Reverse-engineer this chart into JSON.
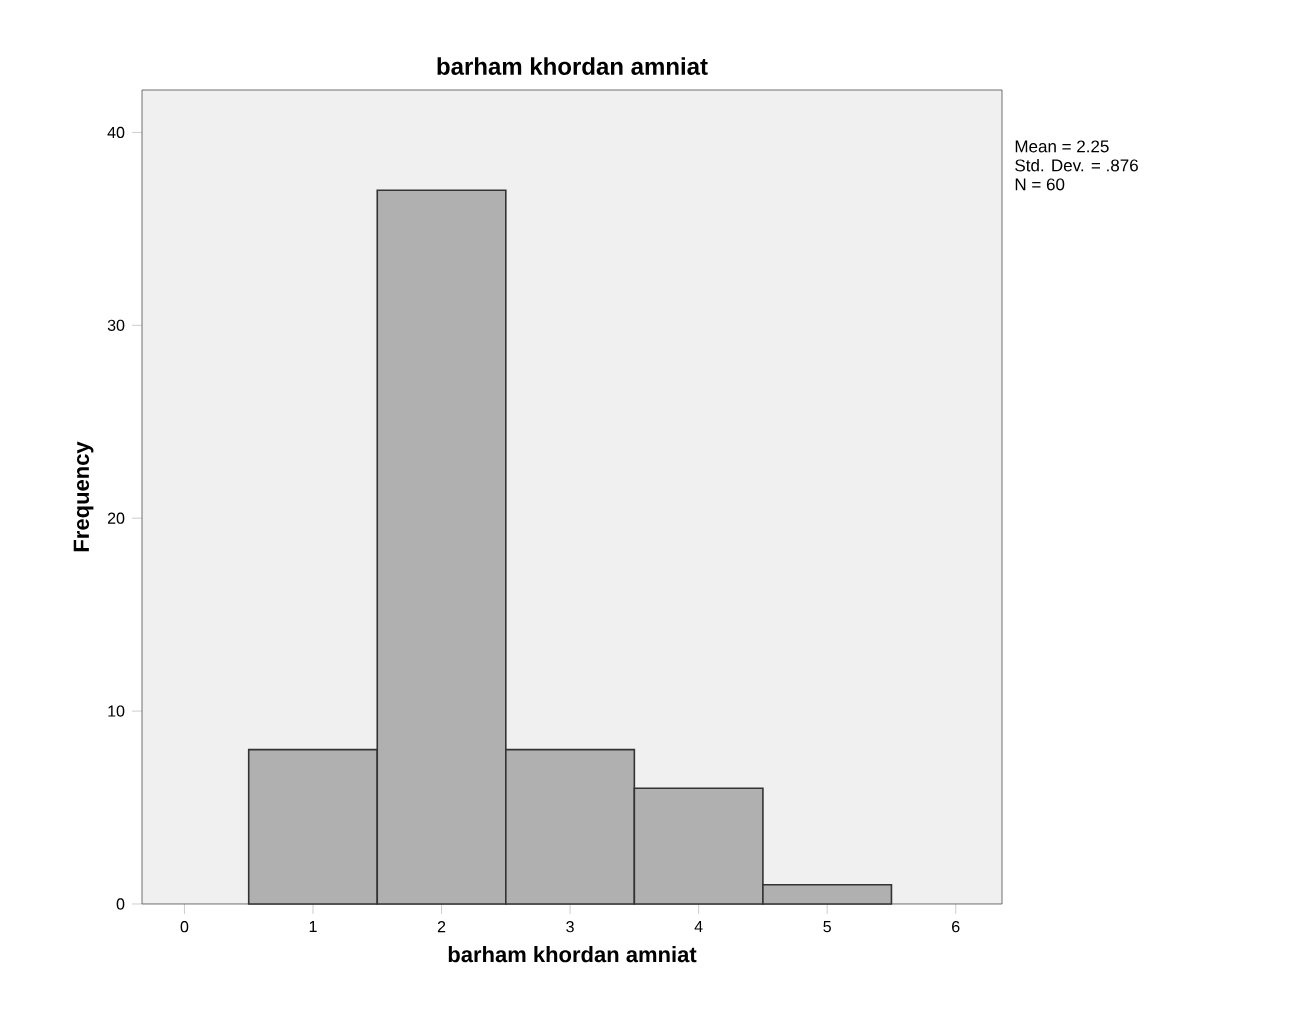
{
  "chart_data": {
    "type": "histogram",
    "title": "barham khordan amniat",
    "xlabel": "barham khordan amniat",
    "ylabel": "Frequency",
    "bins": [
      0.5,
      1.5,
      2.5,
      3.5,
      4.5,
      5.5
    ],
    "values": [
      8,
      37,
      8,
      6,
      1
    ],
    "color": "#b0b0b0",
    "xlim": [
      -0.33,
      6.36
    ],
    "ylim": [
      0,
      42.2
    ],
    "xticks": [
      0,
      1,
      2,
      3,
      4,
      5,
      6
    ],
    "yticks": [
      0,
      10,
      20,
      30,
      40
    ],
    "annotations": [
      "Mean = 2.25",
      "Std. Dev. = .876",
      "N = 60"
    ]
  }
}
